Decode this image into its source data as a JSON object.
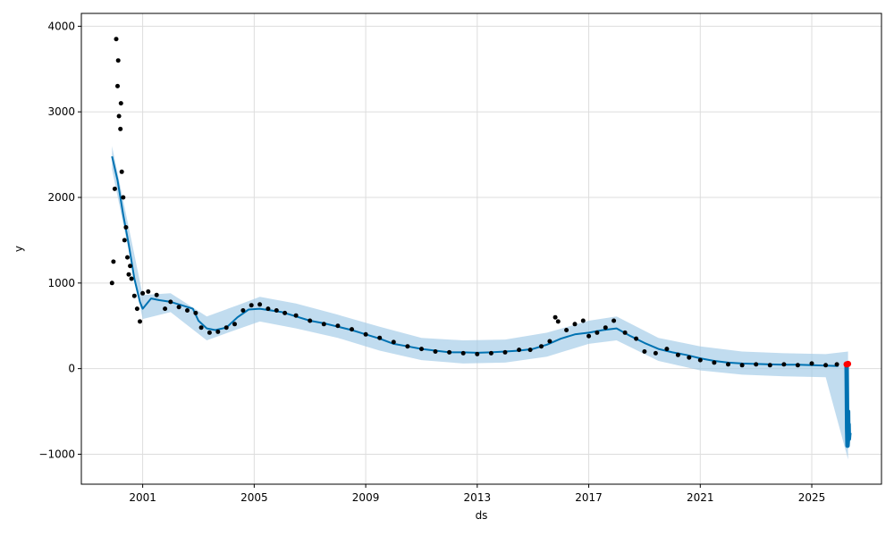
{
  "chart_data": {
    "type": "line",
    "title": "",
    "xlabel": "ds",
    "ylabel": "y",
    "xlim": [
      1998.8,
      2027.5
    ],
    "ylim": [
      -1350,
      4150
    ],
    "grid": true,
    "x_ticks": [
      2001,
      2005,
      2009,
      2013,
      2017,
      2021,
      2025
    ],
    "x_tick_labels": [
      "2001",
      "2005",
      "2009",
      "2013",
      "2017",
      "2021",
      "2025"
    ],
    "y_ticks": [
      -1000,
      0,
      1000,
      2000,
      3000,
      4000
    ],
    "y_tick_labels": [
      "−1000",
      "0",
      "1000",
      "2000",
      "3000",
      "4000"
    ],
    "colors": {
      "observed": "#000000",
      "forecast": "#0072b2",
      "interval": "#9fc9e6",
      "highlight": "#ff0000",
      "grid": "#dddddd"
    },
    "series": [
      {
        "role": "observed",
        "kind": "scatter",
        "x": [
          1999.9,
          1999.95,
          2000.0,
          2000.05,
          2000.1,
          2000.12,
          2000.15,
          2000.2,
          2000.22,
          2000.25,
          2000.3,
          2000.35,
          2000.4,
          2000.45,
          2000.5,
          2000.55,
          2000.6,
          2000.7,
          2000.8,
          2000.9,
          2001.0,
          2001.2,
          2001.5,
          2001.8,
          2002.0,
          2002.3,
          2002.6,
          2002.9,
          2003.1,
          2003.4,
          2003.7,
          2004.0,
          2004.3,
          2004.6,
          2004.9,
          2005.2,
          2005.5,
          2005.8,
          2006.1,
          2006.5,
          2007.0,
          2007.5,
          2008.0,
          2008.5,
          2009.0,
          2009.5,
          2010.0,
          2010.5,
          2011.0,
          2011.5,
          2012.0,
          2012.5,
          2013.0,
          2013.5,
          2014.0,
          2014.5,
          2014.9,
          2015.3,
          2015.6,
          2015.8,
          2015.9,
          2016.2,
          2016.5,
          2016.8,
          2017.0,
          2017.3,
          2017.6,
          2017.9,
          2018.3,
          2018.7,
          2019.0,
          2019.4,
          2019.8,
          2020.2,
          2020.6,
          2021.0,
          2021.5,
          2022.0,
          2022.5,
          2023.0,
          2023.5,
          2024.0,
          2024.5,
          2025.0,
          2025.5,
          2025.9
        ],
        "y": [
          1000,
          1250,
          2100,
          3850,
          3300,
          3600,
          2950,
          2800,
          3100,
          2300,
          2000,
          1500,
          1650,
          1300,
          1100,
          1200,
          1050,
          850,
          700,
          550,
          880,
          900,
          860,
          700,
          780,
          720,
          680,
          650,
          480,
          420,
          430,
          480,
          520,
          680,
          740,
          750,
          700,
          680,
          650,
          620,
          560,
          520,
          500,
          460,
          400,
          360,
          310,
          260,
          230,
          200,
          190,
          180,
          170,
          180,
          190,
          220,
          220,
          260,
          320,
          600,
          550,
          450,
          520,
          560,
          380,
          420,
          480,
          560,
          420,
          350,
          200,
          180,
          230,
          160,
          130,
          100,
          70,
          50,
          40,
          50,
          40,
          50,
          40,
          60,
          40,
          50
        ]
      },
      {
        "role": "forecast",
        "kind": "line",
        "x": [
          1999.9,
          2000.1,
          2000.3,
          2000.5,
          2000.7,
          2000.9,
          2001.0,
          2001.3,
          2001.6,
          2002.0,
          2002.4,
          2002.8,
          2003.0,
          2003.3,
          2003.6,
          2004.0,
          2004.4,
          2004.8,
          2005.2,
          2005.6,
          2006.0,
          2006.5,
          2007.0,
          2007.5,
          2008.0,
          2008.5,
          2009.0,
          2009.5,
          2010.0,
          2010.5,
          2011.0,
          2011.5,
          2012.0,
          2012.5,
          2013.0,
          2013.5,
          2014.0,
          2014.5,
          2015.0,
          2015.5,
          2016.0,
          2016.5,
          2017.0,
          2017.5,
          2018.0,
          2018.5,
          2019.0,
          2019.5,
          2020.0,
          2020.5,
          2021.0,
          2021.5,
          2022.0,
          2022.5,
          2023.0,
          2023.5,
          2024.0,
          2024.5,
          2025.0,
          2025.5,
          2025.95
        ],
        "y": [
          2480,
          2200,
          1800,
          1450,
          1050,
          780,
          700,
          820,
          800,
          780,
          740,
          700,
          560,
          470,
          450,
          480,
          600,
          690,
          700,
          680,
          660,
          610,
          560,
          530,
          490,
          450,
          400,
          350,
          290,
          260,
          230,
          210,
          190,
          190,
          185,
          190,
          200,
          210,
          230,
          280,
          350,
          400,
          420,
          450,
          470,
          380,
          300,
          230,
          190,
          160,
          120,
          90,
          70,
          60,
          55,
          50,
          45,
          45,
          40,
          35,
          30
        ]
      },
      {
        "role": "forecast-tail",
        "kind": "line",
        "x": [
          2026.25,
          2026.26,
          2026.27,
          2026.28,
          2026.29,
          2026.3,
          2026.31,
          2026.32,
          2026.33,
          2026.34,
          2026.35
        ],
        "y": [
          40,
          -300,
          -700,
          -900,
          -850,
          -500,
          -800,
          -650,
          -820,
          -780,
          -750
        ]
      },
      {
        "role": "highlight",
        "kind": "scatter",
        "x": [
          2026.25,
          2026.3
        ],
        "y": [
          50,
          55
        ]
      }
    ],
    "interval": {
      "x": [
        1999.9,
        2001.0,
        2002.0,
        2003.3,
        2004.4,
        2005.2,
        2006.5,
        2008.0,
        2009.5,
        2011.0,
        2012.5,
        2014.0,
        2015.5,
        2017.0,
        2018.0,
        2019.5,
        2021.0,
        2022.5,
        2024.0,
        2025.5,
        2026.3
      ],
      "upper": [
        2600,
        860,
        880,
        610,
        740,
        840,
        760,
        630,
        490,
        360,
        330,
        340,
        420,
        560,
        610,
        360,
        260,
        200,
        180,
        170,
        200
      ],
      "lower": [
        2330,
        580,
        660,
        330,
        460,
        550,
        470,
        360,
        210,
        100,
        60,
        70,
        140,
        290,
        330,
        90,
        -20,
        -70,
        -90,
        -100,
        -1060
      ]
    }
  }
}
